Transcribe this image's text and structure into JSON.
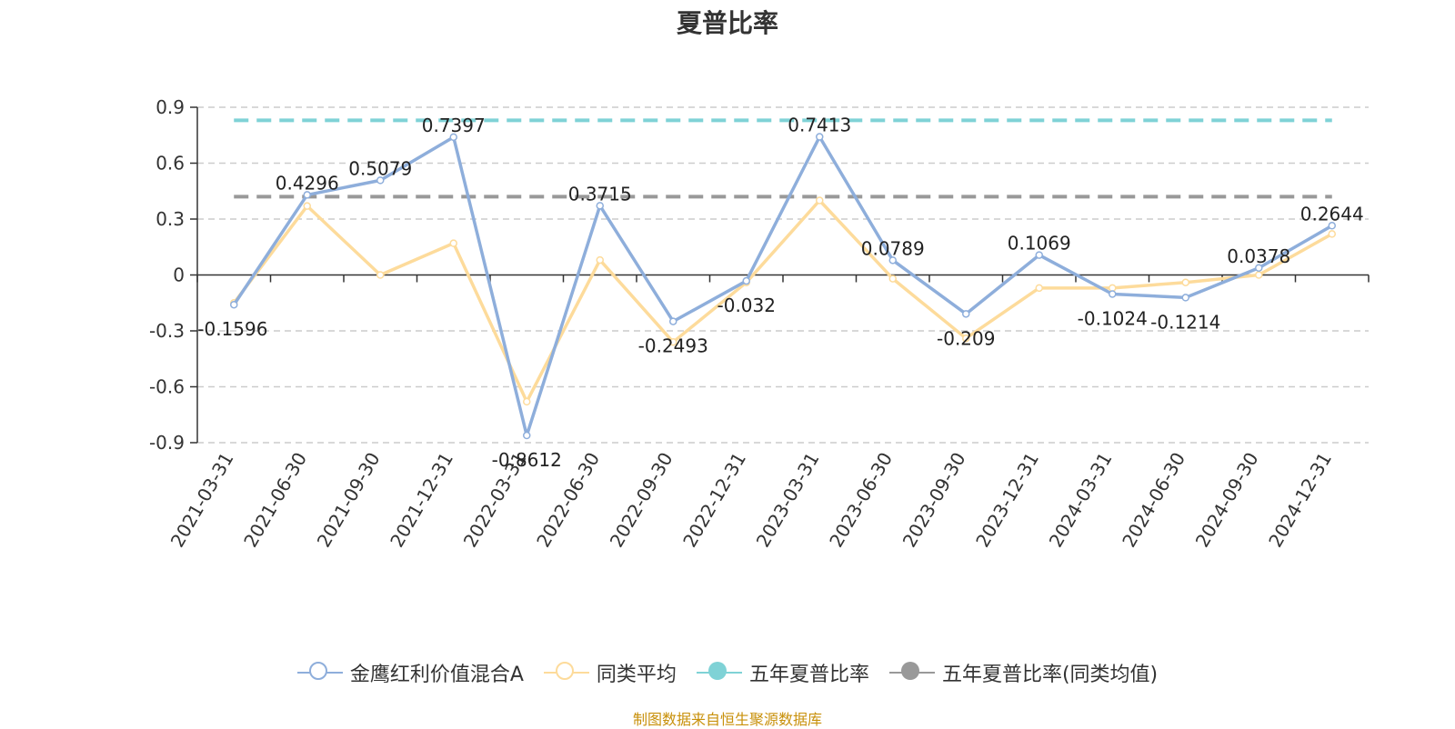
{
  "source_note": "制图数据来自恒生聚源数据库",
  "chart_data": {
    "type": "line",
    "title": "夏普比率",
    "categories": [
      "2021-03-31",
      "2021-06-30",
      "2021-09-30",
      "2021-12-31",
      "2022-03-31",
      "2022-06-30",
      "2022-09-30",
      "2022-12-31",
      "2023-03-31",
      "2023-06-30",
      "2023-09-30",
      "2023-12-31",
      "2024-03-31",
      "2024-06-30",
      "2024-09-30",
      "2024-12-31"
    ],
    "ylim": [
      -0.9,
      0.9
    ],
    "yticks": [
      "0.9",
      "0.6",
      "0.3",
      "0",
      "-0.3",
      "-0.6",
      "-0.9"
    ],
    "ytick_values": [
      0.9,
      0.6,
      0.3,
      0,
      -0.3,
      -0.6,
      -0.9
    ],
    "grid": true,
    "legend_position": "bottom",
    "series": [
      {
        "name": "金鹰红利价值混合A",
        "color": "#8eaedb",
        "values": [
          -0.1596,
          0.4296,
          0.5079,
          0.7397,
          -0.8612,
          0.3715,
          -0.2493,
          -0.032,
          0.7413,
          0.0789,
          -0.209,
          0.1069,
          -0.1024,
          -0.1214,
          0.0378,
          0.2644
        ],
        "labels": [
          "-0.1596",
          "0.4296",
          "0.5079",
          "0.7397",
          "-0.8612",
          "0.3715",
          "-0.2493",
          "-0.032",
          "0.7413",
          "0.0789",
          "-0.209",
          "0.1069",
          "-0.1024",
          "-0.1214",
          "0.0378",
          "0.2644"
        ]
      },
      {
        "name": "同类平均",
        "color": "#fddb9b",
        "values": [
          -0.15,
          0.37,
          0.0,
          0.17,
          -0.68,
          0.08,
          -0.36,
          -0.04,
          0.4,
          -0.02,
          -0.34,
          -0.07,
          -0.07,
          -0.04,
          0.0,
          0.22
        ]
      },
      {
        "name": "五年夏普比率",
        "color": "#7fd2d6",
        "style": "dashed",
        "constant": 0.83
      },
      {
        "name": "五年夏普比率(同类均值)",
        "color": "#999999",
        "style": "dashed",
        "constant": 0.42
      }
    ]
  }
}
